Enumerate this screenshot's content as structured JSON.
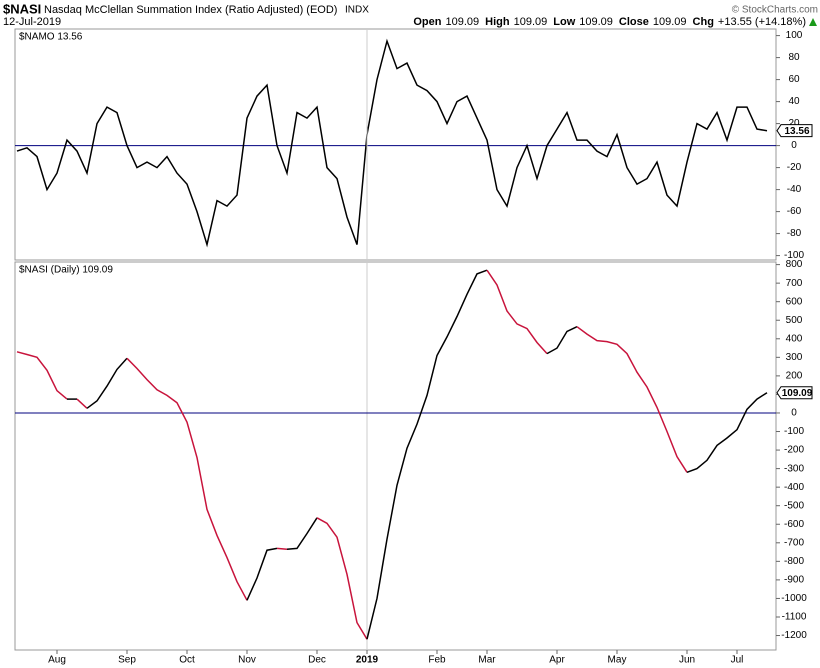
{
  "header": {
    "symbol": "$NASI",
    "name": "Nasdaq McClellan Summation Index (Ratio Adjusted) (EOD)",
    "exchange": "INDX",
    "copyright": "© StockCharts.com",
    "date": "12-Jul-2019",
    "quote": [
      {
        "label": "Open",
        "value": "109.09"
      },
      {
        "label": "High",
        "value": "109.09"
      },
      {
        "label": "Low",
        "value": "109.09"
      },
      {
        "label": "Close",
        "value": "109.09"
      },
      {
        "label": "Chg",
        "value": "+13.55 (+14.18%)"
      }
    ]
  },
  "chart_data": [
    {
      "type": "line",
      "label": "$NAMO 13.56",
      "ylim": [
        -104,
        106
      ],
      "yticks": [
        100,
        80,
        60,
        40,
        20,
        0,
        -20,
        -40,
        -60,
        -80,
        -100
      ],
      "zero_line_color": "#00007f",
      "series": [
        {
          "color": "#000000",
          "values": [
            -5,
            -2,
            -10,
            -40,
            -25,
            5,
            -5,
            -25,
            20,
            35,
            30,
            0,
            -20,
            -15,
            -20,
            -10,
            -25,
            -35,
            -60,
            -90,
            -50,
            -55,
            -45,
            25,
            45,
            55,
            0,
            -25,
            30,
            25,
            35,
            -20,
            -30,
            -65,
            -90,
            10,
            60,
            95,
            70,
            75,
            55,
            50,
            40,
            20,
            40,
            45,
            25,
            5,
            -40,
            -55,
            -20,
            0,
            -30,
            0,
            15,
            30,
            5,
            5,
            -5,
            -10,
            10,
            -20,
            -35,
            -30,
            -15,
            -45,
            -55,
            -15,
            20,
            15,
            30,
            5,
            35,
            35,
            15,
            13.56
          ]
        }
      ]
    },
    {
      "type": "line",
      "label": "$NASI (Daily) 109.09",
      "ylim": [
        -1278,
        814
      ],
      "yticks": [
        800,
        700,
        600,
        500,
        400,
        300,
        200,
        100,
        0,
        -100,
        -200,
        -300,
        -400,
        -500,
        -600,
        -700,
        -800,
        -900,
        -1000,
        -1100,
        -1200
      ],
      "zero_line_color": "#00007f",
      "categories": [
        null,
        null,
        null,
        null,
        "Aug",
        null,
        null,
        null,
        null,
        null,
        null,
        "Sep",
        null,
        null,
        null,
        null,
        null,
        "Oct",
        null,
        null,
        null,
        null,
        null,
        "Nov",
        null,
        null,
        null,
        null,
        null,
        null,
        "Dec",
        null,
        null,
        null,
        null,
        "2019",
        null,
        null,
        null,
        null,
        null,
        null,
        "Feb",
        null,
        null,
        null,
        null,
        "Mar",
        null,
        null,
        null,
        null,
        null,
        null,
        "Apr",
        null,
        null,
        null,
        null,
        null,
        "May",
        null,
        null,
        null,
        null,
        null,
        null,
        "Jun",
        null,
        null,
        null,
        null,
        "Jul",
        null,
        null,
        null
      ],
      "series": [
        {
          "color": "#000000",
          "down_color": "#c8143c",
          "values": [
            330,
            315,
            300,
            230,
            120,
            75,
            75,
            25,
            65,
            145,
            235,
            295,
            240,
            180,
            125,
            95,
            55,
            -50,
            -240,
            -520,
            -660,
            -780,
            -910,
            -1010,
            -890,
            -740,
            -730,
            -735,
            -730,
            -650,
            -565,
            -595,
            -670,
            -870,
            -1130,
            -1220,
            -1000,
            -680,
            -390,
            -190,
            -60,
            95,
            310,
            410,
            520,
            640,
            750,
            770,
            690,
            550,
            480,
            455,
            380,
            320,
            350,
            440,
            465,
            425,
            390,
            385,
            370,
            320,
            220,
            140,
            30,
            -100,
            -235,
            -320,
            -300,
            -255,
            -175,
            -135,
            -90,
            20,
            75,
            109.09
          ]
        }
      ]
    }
  ]
}
